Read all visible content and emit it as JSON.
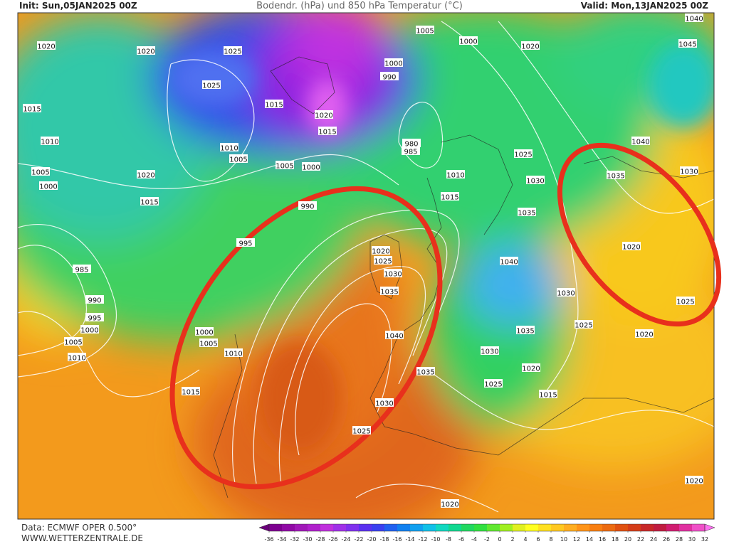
{
  "header": {
    "init": "Init: Sun,05JAN2025 00Z",
    "title": "Bodendr. (hPa) und 850 hPa Temperatur (°C)",
    "valid": "Valid: Mon,13JAN2025 00Z"
  },
  "footer": {
    "data_source": "Data: ECMWF OPER 0.500°",
    "website": "WWW.WETTERZENTRALE.DE"
  },
  "colorbar": {
    "ticks": [
      -36,
      -34,
      -32,
      -30,
      -28,
      -26,
      -24,
      -22,
      -20,
      -18,
      -16,
      -14,
      -12,
      -10,
      -8,
      -6,
      -4,
      -2,
      0,
      2,
      4,
      6,
      8,
      10,
      12,
      14,
      16,
      18,
      20,
      22,
      24,
      26,
      28,
      30,
      32
    ],
    "colors": [
      "#6a007a",
      "#7d0090",
      "#900aa5",
      "#a018b8",
      "#b020cc",
      "#c030dd",
      "#a030e8",
      "#8030ee",
      "#5a30f0",
      "#3a40f0",
      "#2060f0",
      "#1080f0",
      "#10a0f0",
      "#10c0e8",
      "#10d8c0",
      "#10d890",
      "#20d860",
      "#30e040",
      "#60e830",
      "#a0f020",
      "#e0f020",
      "#ffff20",
      "#ffe020",
      "#ffc820",
      "#ffae20",
      "#ff9418",
      "#f87e10",
      "#ec6a10",
      "#e05010",
      "#d43c18",
      "#c82828",
      "#c01c40",
      "#d01c70",
      "#e030a0",
      "#f050c8",
      "#ff70f0"
    ]
  },
  "isobar_labels": [
    "1020",
    "1020",
    "1025",
    "1025",
    "1015",
    "1015",
    "1010",
    "1010",
    "1005",
    "1005",
    "1000",
    "1020",
    "1015",
    "1005",
    "1000",
    "990",
    "995",
    "985",
    "990",
    "995",
    "1000",
    "1005",
    "1010",
    "1000",
    "1005",
    "1010",
    "1015",
    "1005",
    "1000",
    "1020",
    "1040",
    "1045",
    "1000",
    "990",
    "1020",
    "1015",
    "980",
    "985",
    "1010",
    "1025",
    "1030",
    "1015",
    "1035",
    "1040",
    "1035",
    "1030",
    "1020",
    "1025",
    "1020",
    "1020",
    "1025",
    "1030",
    "1035",
    "1040",
    "1030",
    "1025",
    "1035",
    "1030",
    "1020",
    "1025",
    "1015",
    "1035",
    "1030",
    "1025",
    "1020",
    "1020",
    "1040"
  ]
}
